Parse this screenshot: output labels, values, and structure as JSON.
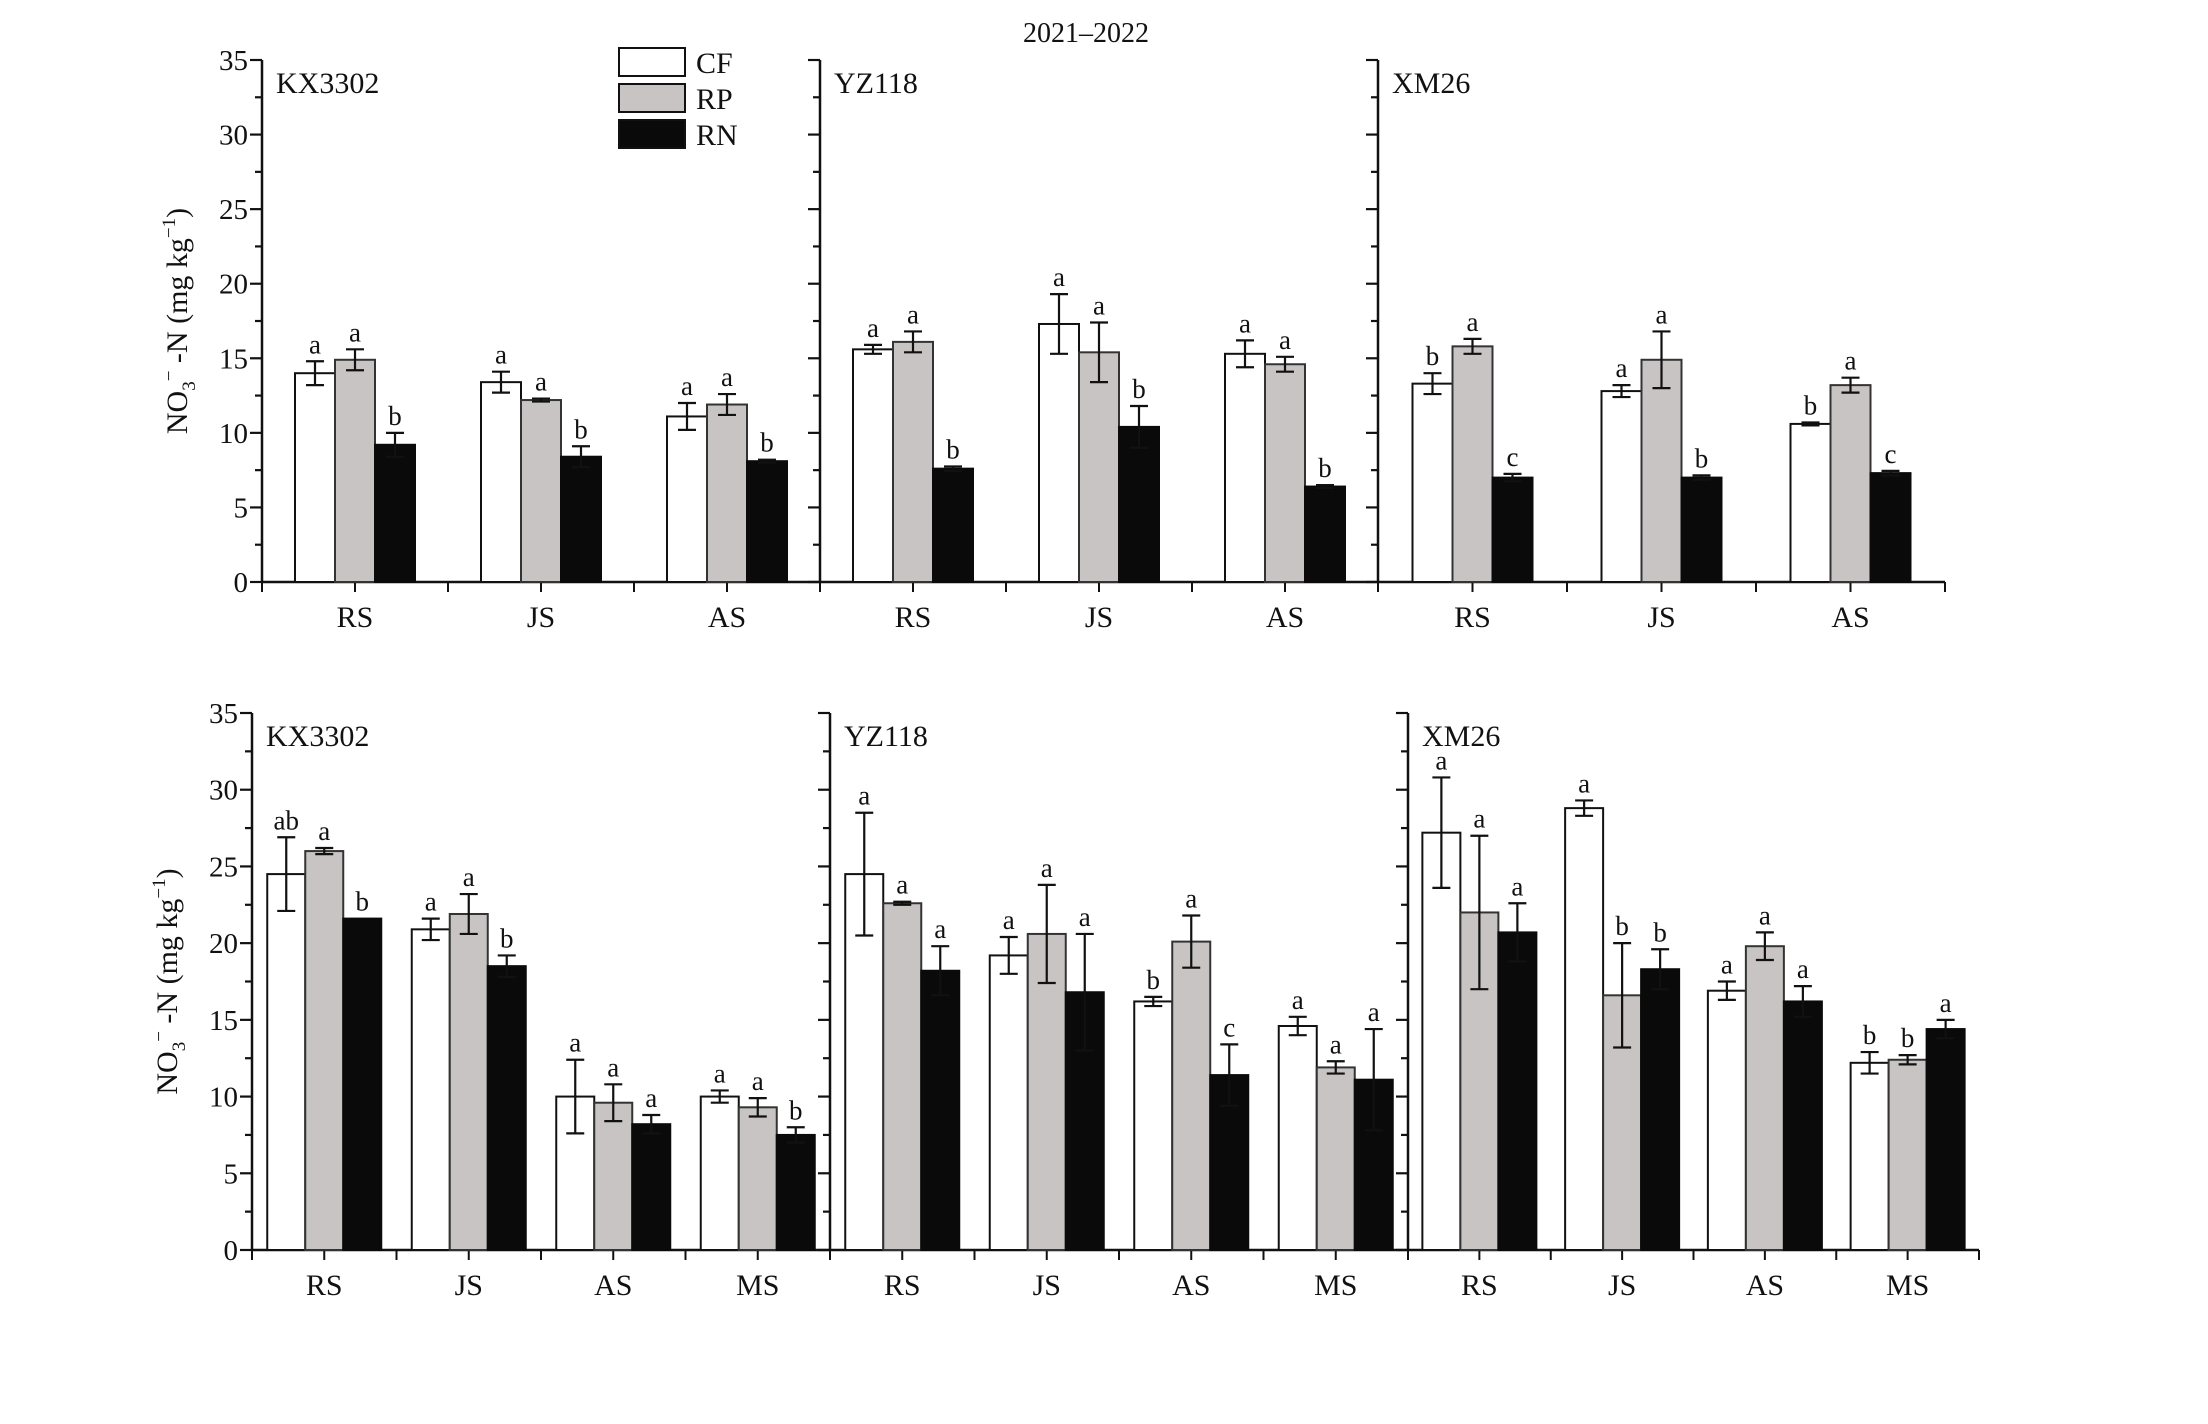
{
  "chart_data": {
    "type": "bar",
    "title": "2021–2022",
    "ylabel": "NO3−-N (mg kg−1)",
    "ylabel_parts": {
      "main": "NO",
      "sub": "3",
      "sup": "−",
      "rest": " -N (mg kg",
      "unit_sup": "−1",
      "close": ")"
    },
    "ylim": [
      0,
      35
    ],
    "yticks": [
      0,
      5,
      10,
      15,
      20,
      25,
      30,
      35
    ],
    "legend": {
      "placement": "top-left-center",
      "entries": [
        {
          "name": "CF",
          "color": "#ffffff"
        },
        {
          "name": "RP",
          "color": "#c8c4c4"
        },
        {
          "name": "RN",
          "color": "#0a0a0a"
        }
      ]
    },
    "series_names": [
      "CF",
      "RP",
      "RN"
    ],
    "rows": [
      {
        "row": "top",
        "categories": [
          "RS",
          "JS",
          "AS"
        ],
        "panels": [
          {
            "name": "KX3302",
            "values": [
              [
                14.0,
                14.9,
                9.2
              ],
              [
                13.4,
                12.2,
                8.4
              ],
              [
                11.1,
                11.9,
                8.1
              ]
            ],
            "errors": [
              [
                0.8,
                0.7,
                0.8
              ],
              [
                0.7,
                0.1,
                0.7
              ],
              [
                0.9,
                0.7,
                0.1
              ]
            ],
            "letters": [
              [
                "a",
                "a",
                "b"
              ],
              [
                "a",
                "a",
                "b"
              ],
              [
                "a",
                "a",
                "b"
              ]
            ]
          },
          {
            "name": "YZ118",
            "values": [
              [
                15.6,
                16.1,
                7.6
              ],
              [
                17.3,
                15.4,
                10.4
              ],
              [
                15.3,
                14.6,
                6.4
              ]
            ],
            "errors": [
              [
                0.3,
                0.7,
                0.15
              ],
              [
                2.0,
                2.0,
                1.4
              ],
              [
                0.9,
                0.5,
                0.1
              ]
            ],
            "letters": [
              [
                "a",
                "a",
                "b"
              ],
              [
                "a",
                "a",
                "b"
              ],
              [
                "a",
                "a",
                "b"
              ]
            ]
          },
          {
            "name": "XM26",
            "values": [
              [
                13.3,
                15.8,
                7.0
              ],
              [
                12.8,
                14.9,
                7.0
              ],
              [
                10.6,
                13.2,
                7.3
              ]
            ],
            "errors": [
              [
                0.7,
                0.5,
                0.25
              ],
              [
                0.4,
                1.9,
                0.15
              ],
              [
                0.1,
                0.5,
                0.15
              ]
            ],
            "letters": [
              [
                "b",
                "a",
                "c"
              ],
              [
                "a",
                "a",
                "b"
              ],
              [
                "b",
                "a",
                "c"
              ]
            ]
          }
        ]
      },
      {
        "row": "bottom",
        "categories": [
          "RS",
          "JS",
          "AS",
          "MS"
        ],
        "panels": [
          {
            "name": "KX3302",
            "values": [
              [
                24.5,
                26.0,
                21.6
              ],
              [
                20.9,
                21.9,
                18.5
              ],
              [
                10.0,
                9.6,
                8.2
              ],
              [
                10.0,
                9.3,
                7.5
              ]
            ],
            "errors": [
              [
                2.4,
                0.2,
                0.0
              ],
              [
                0.7,
                1.3,
                0.7
              ],
              [
                2.4,
                1.2,
                0.6
              ],
              [
                0.4,
                0.6,
                0.5
              ]
            ],
            "letters": [
              [
                "ab",
                "a",
                "b"
              ],
              [
                "a",
                "a",
                "b"
              ],
              [
                "a",
                "a",
                "a"
              ],
              [
                "a",
                "a",
                "b"
              ]
            ]
          },
          {
            "name": "YZ118",
            "values": [
              [
                24.5,
                22.6,
                18.2
              ],
              [
                19.2,
                20.6,
                16.8
              ],
              [
                16.2,
                20.1,
                11.4
              ],
              [
                14.6,
                11.9,
                11.1
              ]
            ],
            "errors": [
              [
                4.0,
                0.1,
                1.6
              ],
              [
                1.2,
                3.2,
                3.8
              ],
              [
                0.3,
                1.7,
                2.0
              ],
              [
                0.6,
                0.4,
                3.3
              ]
            ],
            "letters": [
              [
                "a",
                "a",
                "a"
              ],
              [
                "a",
                "a",
                "a"
              ],
              [
                "b",
                "a",
                "c"
              ],
              [
                "a",
                "a",
                "a"
              ]
            ]
          },
          {
            "name": "XM26",
            "values": [
              [
                27.2,
                22.0,
                20.7
              ],
              [
                28.8,
                16.6,
                18.3
              ],
              [
                16.9,
                19.8,
                16.2
              ],
              [
                12.2,
                12.4,
                14.4
              ]
            ],
            "errors": [
              [
                3.6,
                5.0,
                1.9
              ],
              [
                0.5,
                3.4,
                1.3
              ],
              [
                0.6,
                0.9,
                1.0
              ],
              [
                0.7,
                0.3,
                0.6
              ]
            ],
            "letters": [
              [
                "a",
                "a",
                "a"
              ],
              [
                "a",
                "b",
                "b"
              ],
              [
                "a",
                "a",
                "a"
              ],
              [
                "b",
                "b",
                "a"
              ]
            ]
          }
        ]
      }
    ]
  }
}
